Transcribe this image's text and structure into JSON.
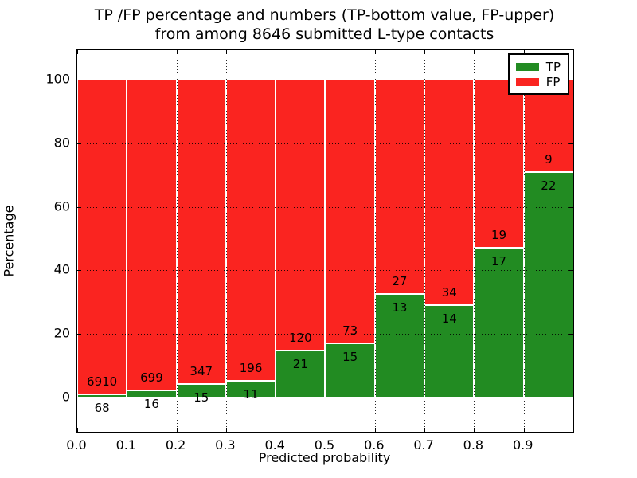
{
  "title": {
    "line1": "TP /FP percentage and numbers (TP-bottom value, FP-upper)",
    "line2": "from among 8646 submitted L-type contacts"
  },
  "chart_data": {
    "type": "bar",
    "stacked": true,
    "title": "TP /FP percentage and numbers (TP-bottom value, FP-upper)\nfrom among 8646 submitted L-type contacts",
    "xlabel": "Predicted probability",
    "ylabel": "Percentage",
    "xlim": [
      0.0,
      1.0
    ],
    "ylim": [
      -10.8,
      109.3
    ],
    "xticks": [
      "0.0",
      "0.1",
      "0.2",
      "0.3",
      "0.4",
      "0.5",
      "0.6",
      "0.7",
      "0.8",
      "0.9"
    ],
    "yticks": [
      0,
      20,
      40,
      60,
      80,
      100
    ],
    "bin_width": 0.1,
    "bin_starts": [
      0.0,
      0.1,
      0.2,
      0.3,
      0.4,
      0.5,
      0.6,
      0.7,
      0.8,
      0.9
    ],
    "total_contacts": 8646,
    "grid": {
      "style": "dotted",
      "color": "#000000"
    },
    "bar_edge_color": "#ffffff",
    "legend": {
      "position": "upper-right",
      "entries": [
        "TP",
        "FP"
      ]
    },
    "series": [
      {
        "name": "TP",
        "color": "#228b22",
        "counts": [
          68,
          16,
          15,
          11,
          21,
          15,
          13,
          14,
          17,
          22
        ],
        "percent": [
          0.97,
          2.24,
          4.14,
          5.31,
          14.89,
          17.05,
          32.5,
          29.17,
          47.22,
          70.97
        ]
      },
      {
        "name": "FP",
        "color": "#fa2420",
        "counts": [
          6910,
          699,
          347,
          196,
          120,
          73,
          27,
          34,
          19,
          9
        ],
        "percent": [
          99.03,
          97.76,
          95.86,
          94.69,
          85.11,
          82.95,
          67.5,
          70.83,
          52.78,
          29.03
        ]
      }
    ]
  }
}
